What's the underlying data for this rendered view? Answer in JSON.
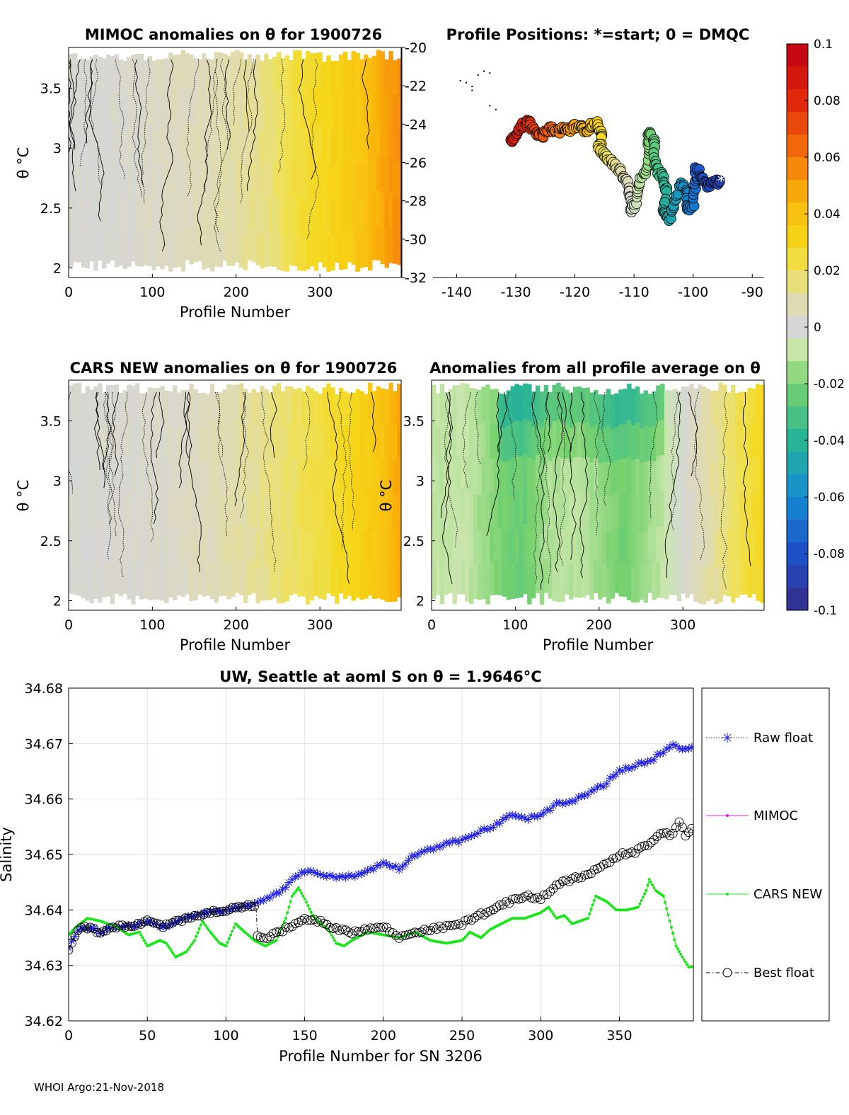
{
  "footer": "WHOI Argo:21-Nov-2018",
  "colorbar": {
    "ticks": [
      "0.1",
      "0.08",
      "0.06",
      "0.04",
      "0.02",
      "0",
      "-0.02",
      "-0.04",
      "-0.06",
      "-0.08",
      "-0.1"
    ],
    "range": [
      -0.1,
      0.1
    ]
  },
  "colors": {
    "raw": "#1f1fe6",
    "mimoc": "#e619e6",
    "cars": "#19e619",
    "best": "#000000",
    "gray": "#d6d6d6",
    "yellow": "#efd51a",
    "orange": "#f2a800",
    "green": "#a8e08a"
  },
  "chart_data": [
    {
      "id": "mimoc",
      "type": "heatmap",
      "title": "MIMOC anomalies on θ  for 1900726",
      "xlabel": "Profile Number",
      "ylabel": "θ °C",
      "xlim": [
        0,
        397
      ],
      "ylim": [
        1.92,
        3.84
      ],
      "xticks": [
        "0",
        "100",
        "200",
        "300"
      ],
      "yticks": [
        "2",
        "2.5",
        "3",
        "3.5"
      ],
      "x_anomaly_profile": [
        [
          0,
          0.0
        ],
        [
          50,
          0.0
        ],
        [
          100,
          0.004
        ],
        [
          150,
          0.006
        ],
        [
          200,
          0.01
        ],
        [
          250,
          0.018
        ],
        [
          280,
          0.026
        ],
        [
          320,
          0.032
        ],
        [
          350,
          0.038
        ],
        [
          380,
          0.05
        ],
        [
          397,
          0.055
        ]
      ]
    },
    {
      "id": "positions",
      "type": "scatter",
      "title": "Profile Positions: *=start; 0 = DMQC",
      "xlim": [
        -144,
        -88
      ],
      "ylim": [
        -32,
        -20
      ],
      "xticks": [
        "-140",
        "-130",
        "-120",
        "-110",
        "-100",
        "-90"
      ],
      "yticks": [
        "-20",
        "-22",
        "-24",
        "-26",
        "-28",
        "-30",
        "-32"
      ],
      "track": [
        [
          -131,
          -24.9
        ],
        [
          -130,
          -24.6
        ],
        [
          -129,
          -24.0
        ],
        [
          -128,
          -23.9
        ],
        [
          -127,
          -24.3
        ],
        [
          -126,
          -24.6
        ],
        [
          -125,
          -24.5
        ],
        [
          -124,
          -24.2
        ],
        [
          -123,
          -24.4
        ],
        [
          -122,
          -24.2
        ],
        [
          -121,
          -24.3
        ],
        [
          -120,
          -24.1
        ],
        [
          -119,
          -24.2
        ],
        [
          -118,
          -24.3
        ],
        [
          -117,
          -24.0
        ],
        [
          -116,
          -24.0
        ],
        [
          -115.5,
          -24.7
        ],
        [
          -116,
          -25.3
        ],
        [
          -115,
          -25.6
        ],
        [
          -114,
          -25.9
        ],
        [
          -113,
          -26.2
        ],
        [
          -112,
          -26.6
        ],
        [
          -111,
          -27.1
        ],
        [
          -110.5,
          -27.9
        ],
        [
          -110.5,
          -28.6
        ],
        [
          -109.5,
          -27.9
        ],
        [
          -109,
          -27.0
        ],
        [
          -108,
          -26.5
        ],
        [
          -107.5,
          -25.5
        ],
        [
          -107.5,
          -24.5
        ],
        [
          -106.5,
          -24.8
        ],
        [
          -106.5,
          -25.8
        ],
        [
          -106,
          -26.5
        ],
        [
          -105,
          -26.8
        ],
        [
          -104.5,
          -27.5
        ],
        [
          -105,
          -28.5
        ],
        [
          -104,
          -29.0
        ],
        [
          -103,
          -28.0
        ],
        [
          -102,
          -27.0
        ],
        [
          -101,
          -27.5
        ],
        [
          -101,
          -28.5
        ],
        [
          -100,
          -28.2
        ],
        [
          -99.5,
          -27.0
        ],
        [
          -99.5,
          -26.3
        ],
        [
          -98.5,
          -26.7
        ],
        [
          -97.5,
          -27.2
        ],
        [
          -96.5,
          -27.0
        ],
        [
          -95.5,
          -27.0
        ]
      ],
      "specks": [
        [
          -139.5,
          -21.7
        ],
        [
          -138.5,
          -21.8
        ],
        [
          -137.5,
          -22.0
        ],
        [
          -137.5,
          -22.2
        ],
        [
          -136.5,
          -21.4
        ],
        [
          -135.5,
          -21.2
        ],
        [
          -134.5,
          -21.3
        ],
        [
          -134.5,
          -23.0
        ],
        [
          -133.5,
          -23.2
        ]
      ]
    },
    {
      "id": "cars",
      "type": "heatmap",
      "title": "CARS NEW anomalies on θ for 1900726",
      "xlabel": "Profile Number",
      "ylabel": "θ °C",
      "xlim": [
        0,
        397
      ],
      "ylim": [
        1.92,
        3.84
      ],
      "xticks": [
        "0",
        "100",
        "200",
        "300"
      ],
      "yticks": [
        "2",
        "2.5",
        "3",
        "3.5"
      ],
      "x_anomaly_profile": [
        [
          0,
          0.0
        ],
        [
          100,
          0.002
        ],
        [
          160,
          0.006
        ],
        [
          200,
          0.01
        ],
        [
          250,
          0.016
        ],
        [
          300,
          0.024
        ],
        [
          340,
          0.03
        ],
        [
          380,
          0.04
        ],
        [
          397,
          0.05
        ]
      ]
    },
    {
      "id": "avg",
      "type": "heatmap",
      "title": "Anomalies from all profile average on θ",
      "xlabel": "Profile Number",
      "ylabel": "θ °C",
      "xlim": [
        0,
        397
      ],
      "ylim": [
        1.92,
        3.84
      ],
      "xticks": [
        "0",
        "100",
        "200",
        "300"
      ],
      "yticks": [
        "2",
        "2.5",
        "3",
        "3.5"
      ],
      "x_anomaly_profile": [
        [
          0,
          -0.01
        ],
        [
          40,
          -0.008
        ],
        [
          80,
          -0.02
        ],
        [
          110,
          -0.024
        ],
        [
          140,
          -0.012
        ],
        [
          180,
          -0.01
        ],
        [
          230,
          -0.022
        ],
        [
          280,
          -0.008
        ],
        [
          300,
          0.0
        ],
        [
          330,
          0.01
        ],
        [
          397,
          0.03
        ]
      ]
    },
    {
      "id": "salinity",
      "type": "line",
      "title": "UW, Seattle at aoml S on θ = 1.9646°C",
      "xlabel": "Profile Number for SN 3206",
      "ylabel": "Salinity",
      "xlim": [
        0,
        397
      ],
      "ylim": [
        34.62,
        34.68
      ],
      "xticks": [
        "0",
        "50",
        "100",
        "150",
        "200",
        "250",
        "300",
        "350"
      ],
      "yticks": [
        "34.68",
        "34.67",
        "34.66",
        "34.65",
        "34.64",
        "34.63",
        "34.62"
      ],
      "grid": true,
      "legend": "right-outside",
      "series": [
        {
          "name": "Raw float",
          "marker": "*",
          "style": "dotted",
          "points": [
            [
              0,
              34.633
            ],
            [
              5,
              34.636
            ],
            [
              10,
              34.637
            ],
            [
              20,
              34.636
            ],
            [
              30,
              34.637
            ],
            [
              40,
              34.637
            ],
            [
              50,
              34.638
            ],
            [
              60,
              34.637
            ],
            [
              70,
              34.638
            ],
            [
              80,
              34.639
            ],
            [
              90,
              34.6395
            ],
            [
              100,
              34.64
            ],
            [
              110,
              34.6405
            ],
            [
              118,
              34.641
            ],
            [
              125,
              34.642
            ],
            [
              135,
              34.6435
            ],
            [
              145,
              34.646
            ],
            [
              150,
              34.647
            ],
            [
              160,
              34.6465
            ],
            [
              170,
              34.646
            ],
            [
              180,
              34.646
            ],
            [
              190,
              34.647
            ],
            [
              200,
              34.6485
            ],
            [
              210,
              34.6475
            ],
            [
              220,
              34.65
            ],
            [
              230,
              34.651
            ],
            [
              240,
              34.652
            ],
            [
              250,
              34.6525
            ],
            [
              260,
              34.654
            ],
            [
              270,
              34.655
            ],
            [
              280,
              34.657
            ],
            [
              290,
              34.6565
            ],
            [
              300,
              34.657
            ],
            [
              310,
              34.659
            ],
            [
              320,
              34.6595
            ],
            [
              330,
              34.661
            ],
            [
              340,
              34.6625
            ],
            [
              350,
              34.665
            ],
            [
              360,
              34.666
            ],
            [
              370,
              34.667
            ],
            [
              380,
              34.669
            ],
            [
              385,
              34.67
            ],
            [
              390,
              34.669
            ],
            [
              397,
              34.6695
            ]
          ]
        },
        {
          "name": "MIMOC",
          "marker": ".",
          "style": "solid",
          "points": []
        },
        {
          "name": "CARS NEW",
          "marker": ".",
          "style": "solid",
          "points": [
            [
              0,
              34.6355
            ],
            [
              5,
              34.637
            ],
            [
              12,
              34.6385
            ],
            [
              20,
              34.638
            ],
            [
              30,
              34.637
            ],
            [
              38,
              34.6355
            ],
            [
              45,
              34.636
            ],
            [
              50,
              34.6335
            ],
            [
              58,
              34.6345
            ],
            [
              62,
              34.634
            ],
            [
              68,
              34.6315
            ],
            [
              75,
              34.6325
            ],
            [
              80,
              34.6345
            ],
            [
              85,
              34.638
            ],
            [
              90,
              34.636
            ],
            [
              96,
              34.634
            ],
            [
              100,
              34.6335
            ],
            [
              106,
              34.6375
            ],
            [
              112,
              34.636
            ],
            [
              118,
              34.6345
            ],
            [
              125,
              34.6335
            ],
            [
              132,
              34.6345
            ],
            [
              138,
              34.6385
            ],
            [
              142,
              34.6425
            ],
            [
              146,
              34.644
            ],
            [
              150,
              34.642
            ],
            [
              155,
              34.639
            ],
            [
              160,
              34.6375
            ],
            [
              165,
              34.6365
            ],
            [
              170,
              34.634
            ],
            [
              175,
              34.6335
            ],
            [
              180,
              34.6345
            ],
            [
              190,
              34.636
            ],
            [
              200,
              34.6355
            ],
            [
              210,
              34.635
            ],
            [
              220,
              34.636
            ],
            [
              230,
              34.6345
            ],
            [
              240,
              34.634
            ],
            [
              250,
              34.6345
            ],
            [
              255,
              34.636
            ],
            [
              262,
              34.635
            ],
            [
              268,
              34.6365
            ],
            [
              275,
              34.6375
            ],
            [
              282,
              34.6385
            ],
            [
              290,
              34.6385
            ],
            [
              300,
              34.6395
            ],
            [
              305,
              34.6405
            ],
            [
              310,
              34.6385
            ],
            [
              315,
              34.639
            ],
            [
              320,
              34.6375
            ],
            [
              325,
              34.638
            ],
            [
              330,
              34.6385
            ],
            [
              335,
              34.6425
            ],
            [
              342,
              34.6415
            ],
            [
              348,
              34.64
            ],
            [
              355,
              34.64
            ],
            [
              362,
              34.6405
            ],
            [
              367,
              34.6435
            ],
            [
              369,
              34.6455
            ],
            [
              373,
              34.6435
            ],
            [
              378,
              34.6425
            ],
            [
              382,
              34.638
            ],
            [
              386,
              34.6335
            ],
            [
              390,
              34.6315
            ],
            [
              394,
              34.6297
            ],
            [
              397,
              34.6298
            ]
          ]
        },
        {
          "name": "Best float",
          "marker": "o",
          "style": "dashdot",
          "points": [
            [
              0,
              34.633
            ],
            [
              5,
              34.636
            ],
            [
              10,
              34.637
            ],
            [
              20,
              34.636
            ],
            [
              30,
              34.637
            ],
            [
              40,
              34.637
            ],
            [
              50,
              34.638
            ],
            [
              60,
              34.637
            ],
            [
              70,
              34.638
            ],
            [
              80,
              34.639
            ],
            [
              90,
              34.6395
            ],
            [
              100,
              34.64
            ],
            [
              110,
              34.6405
            ],
            [
              119,
              34.641
            ],
            [
              120,
              34.6355
            ],
            [
              125,
              34.635
            ],
            [
              130,
              34.6355
            ],
            [
              135,
              34.636
            ],
            [
              140,
              34.637
            ],
            [
              145,
              34.6375
            ],
            [
              150,
              34.6385
            ],
            [
              160,
              34.638
            ],
            [
              170,
              34.6365
            ],
            [
              180,
              34.636
            ],
            [
              190,
              34.6365
            ],
            [
              200,
              34.637
            ],
            [
              210,
              34.635
            ],
            [
              220,
              34.636
            ],
            [
              230,
              34.6365
            ],
            [
              240,
              34.637
            ],
            [
              250,
              34.6375
            ],
            [
              260,
              34.639
            ],
            [
              270,
              34.64
            ],
            [
              280,
              34.6415
            ],
            [
              290,
              34.6425
            ],
            [
              300,
              34.642
            ],
            [
              310,
              34.6445
            ],
            [
              320,
              34.6455
            ],
            [
              330,
              34.6465
            ],
            [
              340,
              34.648
            ],
            [
              350,
              34.65
            ],
            [
              360,
              34.6505
            ],
            [
              370,
              34.652
            ],
            [
              378,
              34.654
            ],
            [
              384,
              34.6535
            ],
            [
              388,
              34.656
            ],
            [
              392,
              34.6535
            ],
            [
              397,
              34.655
            ]
          ]
        }
      ]
    }
  ]
}
